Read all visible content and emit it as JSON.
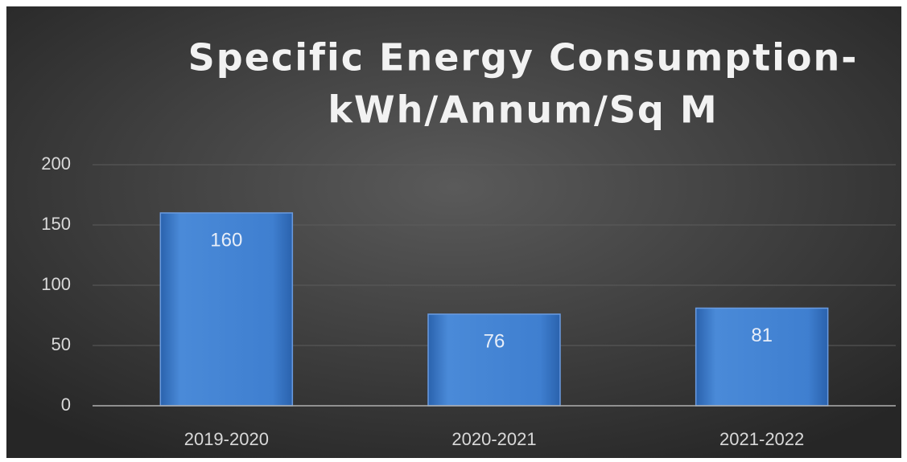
{
  "chart_data": {
    "type": "bar",
    "title": [
      "Specific Energy Consumption-",
      "kWh/Annum/Sq M"
    ],
    "categories": [
      "2019-2020",
      "2020-2021",
      "2021-2022"
    ],
    "values": [
      160,
      76,
      81
    ],
    "color": "#3f7fd0",
    "ylim": [
      0,
      200
    ],
    "yticks": [
      0,
      50,
      100,
      150,
      200
    ],
    "grid": true
  }
}
